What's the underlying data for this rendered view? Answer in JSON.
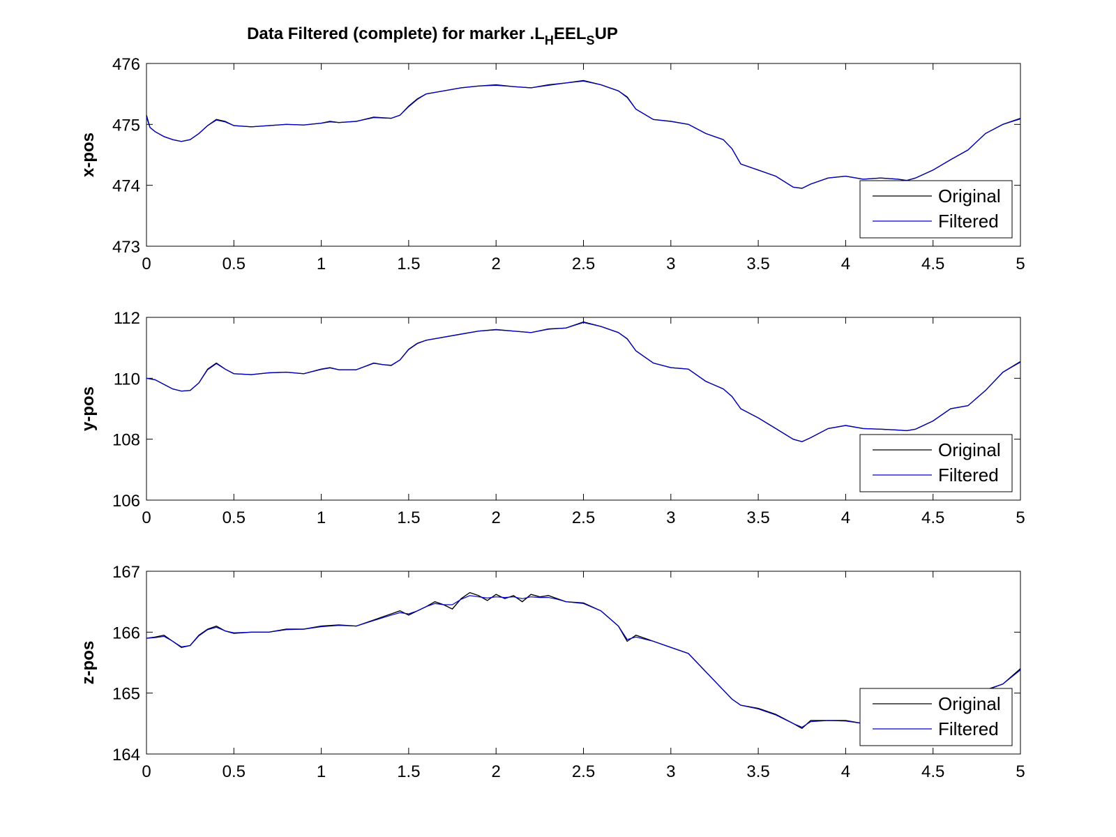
{
  "chart_data": {
    "type": "line",
    "title": {
      "prefix": "Data Filtered (complete) for marker .L",
      "sub1": "H",
      "mid": "EEL",
      "sub2": "S",
      "suffix": "UP"
    },
    "series_colors": {
      "Original": "#000000",
      "Filtered": "#0000cc"
    },
    "grid": false,
    "legend_position": "bottom-right",
    "legend": [
      "Original",
      "Filtered"
    ],
    "xlim": [
      0,
      5
    ],
    "x_ticks": [
      0,
      0.5,
      1,
      1.5,
      2,
      2.5,
      3,
      3.5,
      4,
      4.5,
      5
    ],
    "x_tick_labels": [
      "0",
      "0.5",
      "1",
      "1.5",
      "2",
      "2.5",
      "3",
      "3.5",
      "4",
      "4.5",
      "5"
    ],
    "subplots": [
      {
        "ylabel": "x-pos",
        "ylim": [
          473,
          476
        ],
        "y_ticks": [
          473,
          474,
          475,
          476
        ],
        "series": [
          {
            "name": "Original",
            "x": [
              0,
              0.02,
              0.05,
              0.1,
              0.15,
              0.2,
              0.25,
              0.3,
              0.35,
              0.4,
              0.45,
              0.5,
              0.6,
              0.7,
              0.8,
              0.9,
              1.0,
              1.05,
              1.1,
              1.2,
              1.3,
              1.4,
              1.45,
              1.5,
              1.55,
              1.6,
              1.7,
              1.8,
              1.9,
              2.0,
              2.1,
              2.2,
              2.3,
              2.4,
              2.5,
              2.6,
              2.7,
              2.75,
              2.8,
              2.9,
              3.0,
              3.1,
              3.2,
              3.3,
              3.35,
              3.4,
              3.5,
              3.6,
              3.7,
              3.75,
              3.8,
              3.9,
              4.0,
              4.1,
              4.2,
              4.3,
              4.35,
              4.4,
              4.5,
              4.6,
              4.7,
              4.8,
              4.9,
              5.0
            ],
            "y": [
              475.15,
              474.95,
              474.88,
              474.8,
              474.75,
              474.72,
              474.75,
              474.85,
              474.98,
              475.08,
              475.05,
              474.98,
              474.96,
              474.98,
              475.0,
              474.99,
              475.02,
              475.05,
              475.03,
              475.05,
              475.12,
              475.1,
              475.15,
              475.3,
              475.42,
              475.5,
              475.55,
              475.6,
              475.63,
              475.65,
              475.62,
              475.6,
              475.65,
              475.68,
              475.72,
              475.65,
              475.55,
              475.45,
              475.25,
              475.08,
              475.05,
              475.0,
              474.85,
              474.75,
              474.6,
              474.35,
              474.25,
              474.15,
              473.97,
              473.95,
              474.02,
              474.12,
              474.15,
              474.1,
              474.12,
              474.1,
              474.08,
              474.12,
              474.25,
              474.42,
              474.58,
              474.85,
              475.0,
              475.1
            ]
          },
          {
            "name": "Filtered",
            "x": [
              0,
              0.02,
              0.05,
              0.1,
              0.15,
              0.2,
              0.25,
              0.3,
              0.35,
              0.4,
              0.45,
              0.5,
              0.6,
              0.7,
              0.8,
              0.9,
              1.0,
              1.05,
              1.1,
              1.2,
              1.3,
              1.4,
              1.45,
              1.5,
              1.55,
              1.6,
              1.7,
              1.8,
              1.9,
              2.0,
              2.1,
              2.2,
              2.3,
              2.4,
              2.5,
              2.6,
              2.7,
              2.75,
              2.8,
              2.9,
              3.0,
              3.1,
              3.2,
              3.3,
              3.35,
              3.4,
              3.5,
              3.6,
              3.7,
              3.75,
              3.8,
              3.9,
              4.0,
              4.1,
              4.2,
              4.3,
              4.35,
              4.4,
              4.5,
              4.6,
              4.7,
              4.8,
              4.9,
              5.0
            ],
            "y": [
              475.12,
              474.95,
              474.88,
              474.8,
              474.75,
              474.72,
              474.75,
              474.85,
              474.98,
              475.07,
              475.04,
              474.98,
              474.96,
              474.98,
              475.0,
              474.99,
              475.02,
              475.04,
              475.03,
              475.05,
              475.11,
              475.1,
              475.15,
              475.29,
              475.41,
              475.5,
              475.55,
              475.6,
              475.63,
              475.64,
              475.62,
              475.6,
              475.64,
              475.68,
              475.71,
              475.65,
              475.55,
              475.44,
              475.25,
              475.08,
              475.05,
              475.0,
              474.85,
              474.75,
              474.6,
              474.35,
              474.25,
              474.15,
              473.97,
              473.95,
              474.02,
              474.12,
              474.15,
              474.1,
              474.12,
              474.1,
              474.08,
              474.12,
              474.25,
              474.42,
              474.58,
              474.85,
              475.0,
              475.09
            ]
          }
        ]
      },
      {
        "ylabel": "y-pos",
        "ylim": [
          106,
          112
        ],
        "y_ticks": [
          106,
          108,
          110,
          112
        ],
        "series": [
          {
            "name": "Original",
            "x": [
              0,
              0.05,
              0.1,
              0.15,
              0.2,
              0.25,
              0.3,
              0.35,
              0.4,
              0.45,
              0.5,
              0.6,
              0.7,
              0.8,
              0.9,
              1.0,
              1.05,
              1.1,
              1.2,
              1.3,
              1.35,
              1.4,
              1.45,
              1.5,
              1.55,
              1.6,
              1.7,
              1.8,
              1.9,
              2.0,
              2.1,
              2.2,
              2.3,
              2.4,
              2.5,
              2.6,
              2.7,
              2.75,
              2.8,
              2.9,
              3.0,
              3.1,
              3.2,
              3.3,
              3.35,
              3.4,
              3.5,
              3.6,
              3.7,
              3.75,
              3.8,
              3.9,
              4.0,
              4.1,
              4.2,
              4.3,
              4.35,
              4.4,
              4.5,
              4.6,
              4.7,
              4.8,
              4.9,
              5.0
            ],
            "y": [
              110.0,
              109.95,
              109.8,
              109.65,
              109.58,
              109.6,
              109.85,
              110.3,
              110.5,
              110.3,
              110.15,
              110.12,
              110.18,
              110.2,
              110.15,
              110.3,
              110.35,
              110.28,
              110.28,
              110.5,
              110.45,
              110.42,
              110.6,
              110.95,
              111.15,
              111.25,
              111.35,
              111.45,
              111.55,
              111.6,
              111.55,
              111.5,
              111.62,
              111.65,
              111.85,
              111.7,
              111.5,
              111.3,
              110.9,
              110.5,
              110.35,
              110.3,
              109.9,
              109.65,
              109.4,
              109.0,
              108.7,
              108.35,
              108.0,
              107.92,
              108.05,
              108.35,
              108.45,
              108.35,
              108.33,
              108.3,
              108.28,
              108.33,
              108.6,
              109.0,
              109.1,
              109.6,
              110.2,
              110.55
            ]
          },
          {
            "name": "Filtered",
            "x": [
              0,
              0.05,
              0.1,
              0.15,
              0.2,
              0.25,
              0.3,
              0.35,
              0.4,
              0.45,
              0.5,
              0.6,
              0.7,
              0.8,
              0.9,
              1.0,
              1.05,
              1.1,
              1.2,
              1.3,
              1.35,
              1.4,
              1.45,
              1.5,
              1.55,
              1.6,
              1.7,
              1.8,
              1.9,
              2.0,
              2.1,
              2.2,
              2.3,
              2.4,
              2.5,
              2.6,
              2.7,
              2.75,
              2.8,
              2.9,
              3.0,
              3.1,
              3.2,
              3.3,
              3.35,
              3.4,
              3.5,
              3.6,
              3.7,
              3.75,
              3.8,
              3.9,
              4.0,
              4.1,
              4.2,
              4.3,
              4.35,
              4.4,
              4.5,
              4.6,
              4.7,
              4.8,
              4.9,
              5.0
            ],
            "y": [
              110.0,
              109.95,
              109.8,
              109.65,
              109.58,
              109.6,
              109.85,
              110.28,
              110.48,
              110.3,
              110.15,
              110.12,
              110.18,
              110.2,
              110.15,
              110.29,
              110.34,
              110.28,
              110.28,
              110.49,
              110.45,
              110.43,
              110.6,
              110.94,
              111.14,
              111.25,
              111.35,
              111.45,
              111.55,
              111.59,
              111.55,
              111.5,
              111.61,
              111.65,
              111.83,
              111.7,
              111.5,
              111.29,
              110.9,
              110.5,
              110.35,
              110.3,
              109.9,
              109.65,
              109.4,
              109.0,
              108.7,
              108.35,
              108.0,
              107.92,
              108.05,
              108.35,
              108.45,
              108.35,
              108.33,
              108.3,
              108.28,
              108.33,
              108.6,
              109.0,
              109.1,
              109.6,
              110.2,
              110.53
            ]
          }
        ]
      },
      {
        "ylabel": "z-pos",
        "ylim": [
          164,
          167
        ],
        "y_ticks": [
          164,
          165,
          166,
          167
        ],
        "series": [
          {
            "name": "Original",
            "x": [
              0,
              0.05,
              0.1,
              0.15,
              0.2,
              0.25,
              0.3,
              0.35,
              0.4,
              0.45,
              0.5,
              0.6,
              0.7,
              0.8,
              0.9,
              1.0,
              1.1,
              1.2,
              1.3,
              1.4,
              1.45,
              1.5,
              1.55,
              1.6,
              1.65,
              1.7,
              1.75,
              1.8,
              1.85,
              1.9,
              1.95,
              2.0,
              2.05,
              2.1,
              2.15,
              2.2,
              2.25,
              2.3,
              2.35,
              2.4,
              2.5,
              2.6,
              2.7,
              2.75,
              2.8,
              2.9,
              3.0,
              3.1,
              3.2,
              3.3,
              3.35,
              3.4,
              3.5,
              3.6,
              3.7,
              3.75,
              3.8,
              3.9,
              4.0,
              4.1,
              4.2,
              4.3,
              4.4,
              4.5,
              4.6,
              4.7,
              4.8,
              4.9,
              5.0
            ],
            "y": [
              165.9,
              165.92,
              165.95,
              165.85,
              165.75,
              165.78,
              165.95,
              166.05,
              166.1,
              166.02,
              165.98,
              166.0,
              166.0,
              166.05,
              166.05,
              166.1,
              166.12,
              166.1,
              166.2,
              166.3,
              166.35,
              166.28,
              166.35,
              166.42,
              166.5,
              166.45,
              166.38,
              166.55,
              166.65,
              166.6,
              166.52,
              166.62,
              166.55,
              166.6,
              166.5,
              166.62,
              166.58,
              166.6,
              166.55,
              166.5,
              166.48,
              166.35,
              166.1,
              165.85,
              165.95,
              165.85,
              165.75,
              165.65,
              165.35,
              165.05,
              164.9,
              164.8,
              164.75,
              164.65,
              164.5,
              164.42,
              164.55,
              164.55,
              164.55,
              164.5,
              164.45,
              164.5,
              164.55,
              164.55,
              164.6,
              164.8,
              165.05,
              165.15,
              165.4
            ]
          },
          {
            "name": "Filtered",
            "x": [
              0,
              0.05,
              0.1,
              0.15,
              0.2,
              0.25,
              0.3,
              0.35,
              0.4,
              0.45,
              0.5,
              0.6,
              0.7,
              0.8,
              0.9,
              1.0,
              1.1,
              1.2,
              1.3,
              1.4,
              1.45,
              1.5,
              1.55,
              1.6,
              1.65,
              1.7,
              1.75,
              1.8,
              1.85,
              1.9,
              1.95,
              2.0,
              2.05,
              2.1,
              2.15,
              2.2,
              2.25,
              2.3,
              2.35,
              2.4,
              2.5,
              2.6,
              2.7,
              2.75,
              2.8,
              2.9,
              3.0,
              3.1,
              3.2,
              3.3,
              3.35,
              3.4,
              3.5,
              3.6,
              3.7,
              3.75,
              3.8,
              3.9,
              4.0,
              4.1,
              4.2,
              4.3,
              4.4,
              4.5,
              4.6,
              4.7,
              4.8,
              4.9,
              5.0
            ],
            "y": [
              165.9,
              165.91,
              165.93,
              165.85,
              165.76,
              165.78,
              165.94,
              166.04,
              166.08,
              166.02,
              165.99,
              166.0,
              166.0,
              166.04,
              166.05,
              166.09,
              166.11,
              166.1,
              166.19,
              166.28,
              166.32,
              166.3,
              166.35,
              166.42,
              166.47,
              166.45,
              166.45,
              166.54,
              166.6,
              166.58,
              166.56,
              166.58,
              166.57,
              166.58,
              166.55,
              166.58,
              166.57,
              166.57,
              166.54,
              166.5,
              166.47,
              166.35,
              166.1,
              165.88,
              165.92,
              165.85,
              165.75,
              165.65,
              165.35,
              165.05,
              164.9,
              164.8,
              164.74,
              164.64,
              164.5,
              164.44,
              164.53,
              164.55,
              164.54,
              164.5,
              164.47,
              164.5,
              164.54,
              164.55,
              164.6,
              164.8,
              165.04,
              165.15,
              165.38
            ]
          }
        ]
      }
    ]
  }
}
